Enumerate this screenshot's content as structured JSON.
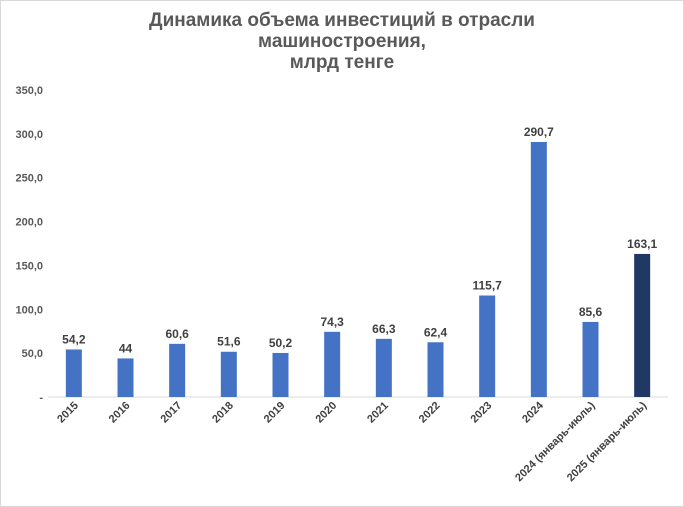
{
  "chart_data": {
    "type": "bar",
    "title_lines": [
      "Динамика объема инвестиций в отрасли",
      "машиностроения,",
      "млрд тенге"
    ],
    "categories": [
      "2015",
      "2016",
      "2017",
      "2018",
      "2019",
      "2020",
      "2021",
      "2022",
      "2023",
      "2024",
      "2024 (январь-июль)",
      "2025 (январь-июль)"
    ],
    "values": [
      54.2,
      44,
      60.6,
      51.6,
      50.2,
      74.3,
      66.3,
      62.4,
      115.7,
      290.7,
      85.6,
      163.1
    ],
    "value_labels": [
      "54,2",
      "44",
      "60,6",
      "51,6",
      "50,2",
      "74,3",
      "66,3",
      "62,4",
      "115,7",
      "290,7",
      "85,6",
      "163,1"
    ],
    "yticks": [
      "-",
      "50,0",
      "100,0",
      "150,0",
      "200,0",
      "250,0",
      "300,0",
      "350,0"
    ],
    "ylim": [
      0,
      350
    ],
    "grid": false,
    "legend": "none",
    "colors": {
      "bar": "#4472c4",
      "highlight_bar": "#203864",
      "highlight_index": 11
    }
  }
}
